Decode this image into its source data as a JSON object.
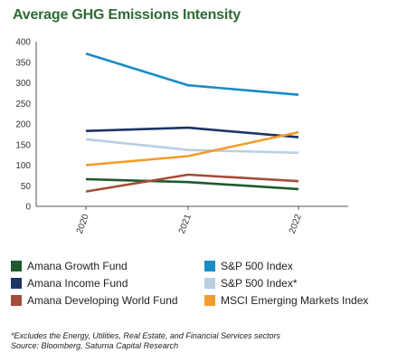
{
  "title": "Average GHG Emissions Intensity",
  "chart_data": {
    "type": "line",
    "title": "Average GHG Emissions Intensity",
    "xlabel": "",
    "ylabel": "",
    "categories": [
      "2020",
      "2021",
      "2022"
    ],
    "ylim": [
      0,
      400
    ],
    "yticks": [
      "0",
      "50",
      "100",
      "150",
      "200",
      "250",
      "300",
      "350",
      "400"
    ],
    "grid": false,
    "legend_position": "bottom",
    "series": [
      {
        "name": "Amana Growth Fund",
        "color": "#1f5a2e",
        "values": [
          66,
          59,
          42
        ]
      },
      {
        "name": "S&P 500 Index",
        "color": "#1a8cc6",
        "values": [
          371,
          294,
          271
        ]
      },
      {
        "name": "Amana Income Fund",
        "color": "#1c3563",
        "values": [
          183,
          191,
          168
        ]
      },
      {
        "name": "S&P 500 Index*",
        "color": "#b9cfe2",
        "values": [
          163,
          137,
          130
        ]
      },
      {
        "name": "Amana Developing World Fund",
        "color": "#a44d38",
        "values": [
          36,
          77,
          61
        ]
      },
      {
        "name": "MSCI Emerging Markets Index",
        "color": "#f39c2a",
        "values": [
          100,
          122,
          180
        ]
      }
    ]
  },
  "footnotes": {
    "note": "*Excludes the Energy, Utilities, Real Estate, and Financial Services sectors",
    "source": "Source: Bloomberg, Saturna Capital Research"
  }
}
